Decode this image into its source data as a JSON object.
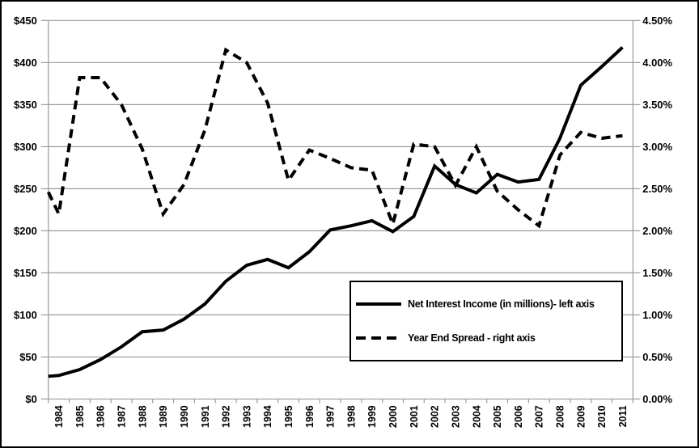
{
  "chart_data": {
    "type": "line",
    "title": "",
    "categories": [
      "1984",
      "1985",
      "1986",
      "1987",
      "1988",
      "1989",
      "1990",
      "1991",
      "1992",
      "1993",
      "1994",
      "1995",
      "1996",
      "1997",
      "1998",
      "1999",
      "2000",
      "2001",
      "2002",
      "2003",
      "2004",
      "2005",
      "2006",
      "2007",
      "2008",
      "2009",
      "2010",
      "2011"
    ],
    "series": [
      {
        "name": "Net Interest Income (in millions)- left axis",
        "axis": "left",
        "line_style": "solid",
        "values": [
          28,
          35,
          47,
          62,
          80,
          82,
          95,
          113,
          140,
          159,
          166,
          156,
          175,
          201,
          206,
          212,
          199,
          217,
          277,
          255,
          245,
          267,
          258,
          261,
          310,
          373,
          395,
          418
        ]
      },
      {
        "name": "Year End Spread - right axis",
        "axis": "right",
        "line_style": "dashed",
        "values": [
          2.2,
          3.82,
          3.82,
          3.5,
          2.97,
          2.2,
          2.55,
          3.2,
          4.15,
          4.0,
          3.52,
          2.6,
          2.96,
          2.86,
          2.75,
          2.72,
          2.08,
          3.03,
          3.0,
          2.54,
          3.0,
          2.47,
          2.25,
          2.06,
          2.9,
          3.17,
          3.1,
          3.13
        ]
      }
    ],
    "lead_in_at_axis": {
      "net_interest_income": 27,
      "year_end_spread": 2.46
    },
    "left_axis": {
      "min": 0,
      "max": 450,
      "tick_step": 50,
      "tick_labels": [
        "$0",
        "$50",
        "$100",
        "$150",
        "$200",
        "$250",
        "$300",
        "$350",
        "$400",
        "$450"
      ]
    },
    "right_axis": {
      "min": 0,
      "max": 4.5,
      "tick_step": 0.5,
      "tick_labels": [
        "0.00%",
        "0.50%",
        "1.00%",
        "1.50%",
        "2.00%",
        "2.50%",
        "3.00%",
        "3.50%",
        "4.00%",
        "4.50%"
      ]
    },
    "grid": true,
    "legend_position": "inside-lower-right",
    "colors": {
      "line": "#000000",
      "grid": "#9a9a9a",
      "background": "#ffffff",
      "text": "#000000"
    }
  }
}
